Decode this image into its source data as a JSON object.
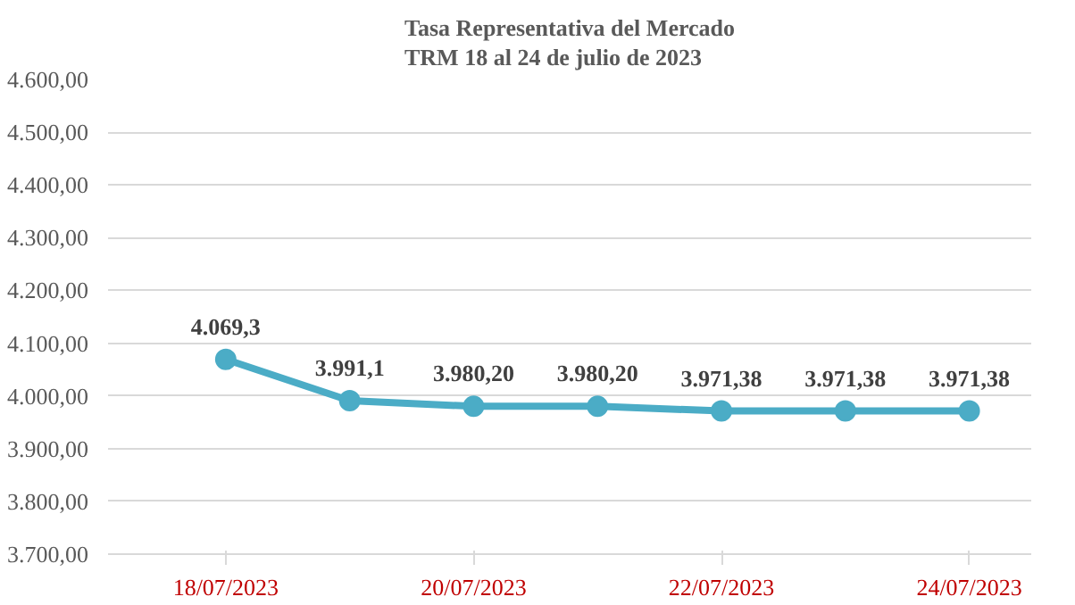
{
  "chart_data": {
    "type": "line",
    "title": "Tasa Representativa del Mercado\nTRM 18 al 24 de julio de 2023",
    "categories": [
      "18/07/2023",
      null,
      "20/07/2023",
      null,
      "22/07/2023",
      null,
      "24/07/2023"
    ],
    "series": [
      {
        "color": "#4bacc6",
        "values": [
          4069.3,
          3991.1,
          3980.2,
          3980.2,
          3971.38,
          3971.38,
          3971.38
        ],
        "value_labels": [
          "4.069,3",
          "3.991,1",
          "3.980,20",
          "3.980,20",
          "3.971,38",
          "3.971,38",
          "3.971,38"
        ]
      }
    ],
    "ylim": [
      3700,
      4600
    ],
    "yticks": [
      {
        "value": 3700,
        "label": "3.700,00"
      },
      {
        "value": 3800,
        "label": "3.800,00"
      },
      {
        "value": 3900,
        "label": "3.900,00"
      },
      {
        "value": 4000,
        "label": "4.000,00"
      },
      {
        "value": 4100,
        "label": "4.100,00"
      },
      {
        "value": 4200,
        "label": "4.200,00"
      },
      {
        "value": 4300,
        "label": "4.300,00"
      },
      {
        "value": 4400,
        "label": "4.400,00"
      },
      {
        "value": 4500,
        "label": "4.500,00"
      },
      {
        "value": 4600,
        "label": "4.600,00"
      }
    ],
    "grid": "y",
    "marker": "circle",
    "line_style": "solid"
  }
}
